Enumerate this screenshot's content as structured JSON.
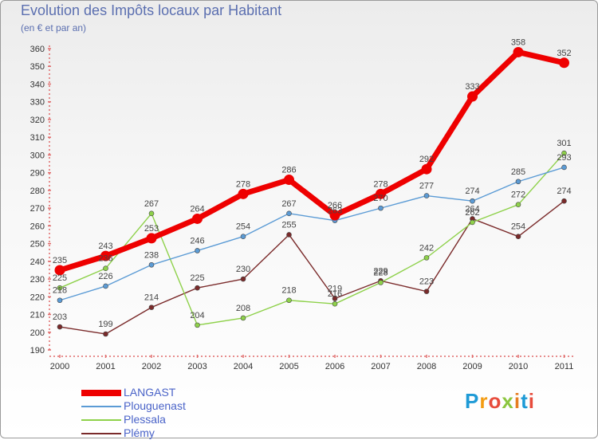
{
  "chart_data": {
    "type": "line",
    "title": "Evolution des Impôts locaux par Habitant",
    "subtitle": "(en € et par an)",
    "x": [
      "2000",
      "2001",
      "2002",
      "2003",
      "2004",
      "2005",
      "2006",
      "2007",
      "2008",
      "2009",
      "2010",
      "2011"
    ],
    "ylim": [
      190,
      360
    ],
    "yticks": [
      190,
      200,
      210,
      220,
      230,
      240,
      250,
      260,
      270,
      280,
      290,
      300,
      310,
      320,
      330,
      340,
      350,
      360
    ],
    "grid": false,
    "legend_position": "bottom-left",
    "series": [
      {
        "name": "LANGAST",
        "color": "#ee0000",
        "values": [
          235,
          243,
          253,
          264,
          278,
          286,
          266,
          278,
          292,
          333,
          358,
          352
        ]
      },
      {
        "name": "Plouguenast",
        "color": "#5b9bd5",
        "values": [
          218,
          226,
          238,
          246,
          254,
          267,
          263,
          270,
          277,
          274,
          285,
          293
        ]
      },
      {
        "name": "Plessala",
        "color": "#8ed14a",
        "values": [
          225,
          236,
          267,
          204,
          208,
          218,
          216,
          228,
          242,
          262,
          272,
          301
        ]
      },
      {
        "name": "Plémy",
        "color": "#7a2a2a",
        "values": [
          203,
          199,
          214,
          225,
          230,
          255,
          219,
          229,
          223,
          264,
          254,
          274
        ]
      }
    ]
  },
  "logo": {
    "letters": [
      "P",
      "r",
      "o",
      "x",
      "i",
      "t",
      "i"
    ],
    "colors": [
      "#1e9ad6",
      "#f39c12",
      "#e74c3c",
      "#8cc63f",
      "#e67e22",
      "#1e9ad6",
      "#e74c3c"
    ]
  }
}
